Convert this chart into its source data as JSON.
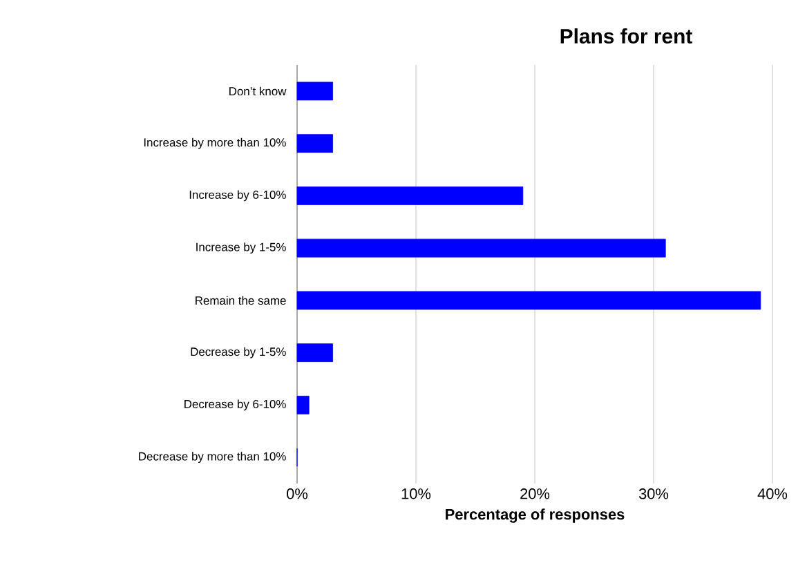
{
  "chart_data": {
    "type": "bar",
    "orientation": "horizontal",
    "title": "Plans for rent",
    "xlabel": "Percentage of responses",
    "categories": [
      "Don’t know",
      "Increase by more than 10%",
      "Increase by 6-10%",
      "Increase by 1-5%",
      "Remain the same",
      "Decrease by 1-5%",
      "Decrease by 6-10%",
      "Decrease by more than 10%"
    ],
    "values": [
      3,
      3,
      19,
      31,
      39,
      3,
      1,
      0
    ],
    "color": "#0000ff",
    "xlim": [
      0,
      40
    ],
    "xticks": [
      {
        "value": 0,
        "label": "0%"
      },
      {
        "value": 10,
        "label": "10%"
      },
      {
        "value": 20,
        "label": "20%"
      },
      {
        "value": 30,
        "label": "30%"
      },
      {
        "value": 40,
        "label": "40%"
      }
    ],
    "grid": "x"
  }
}
